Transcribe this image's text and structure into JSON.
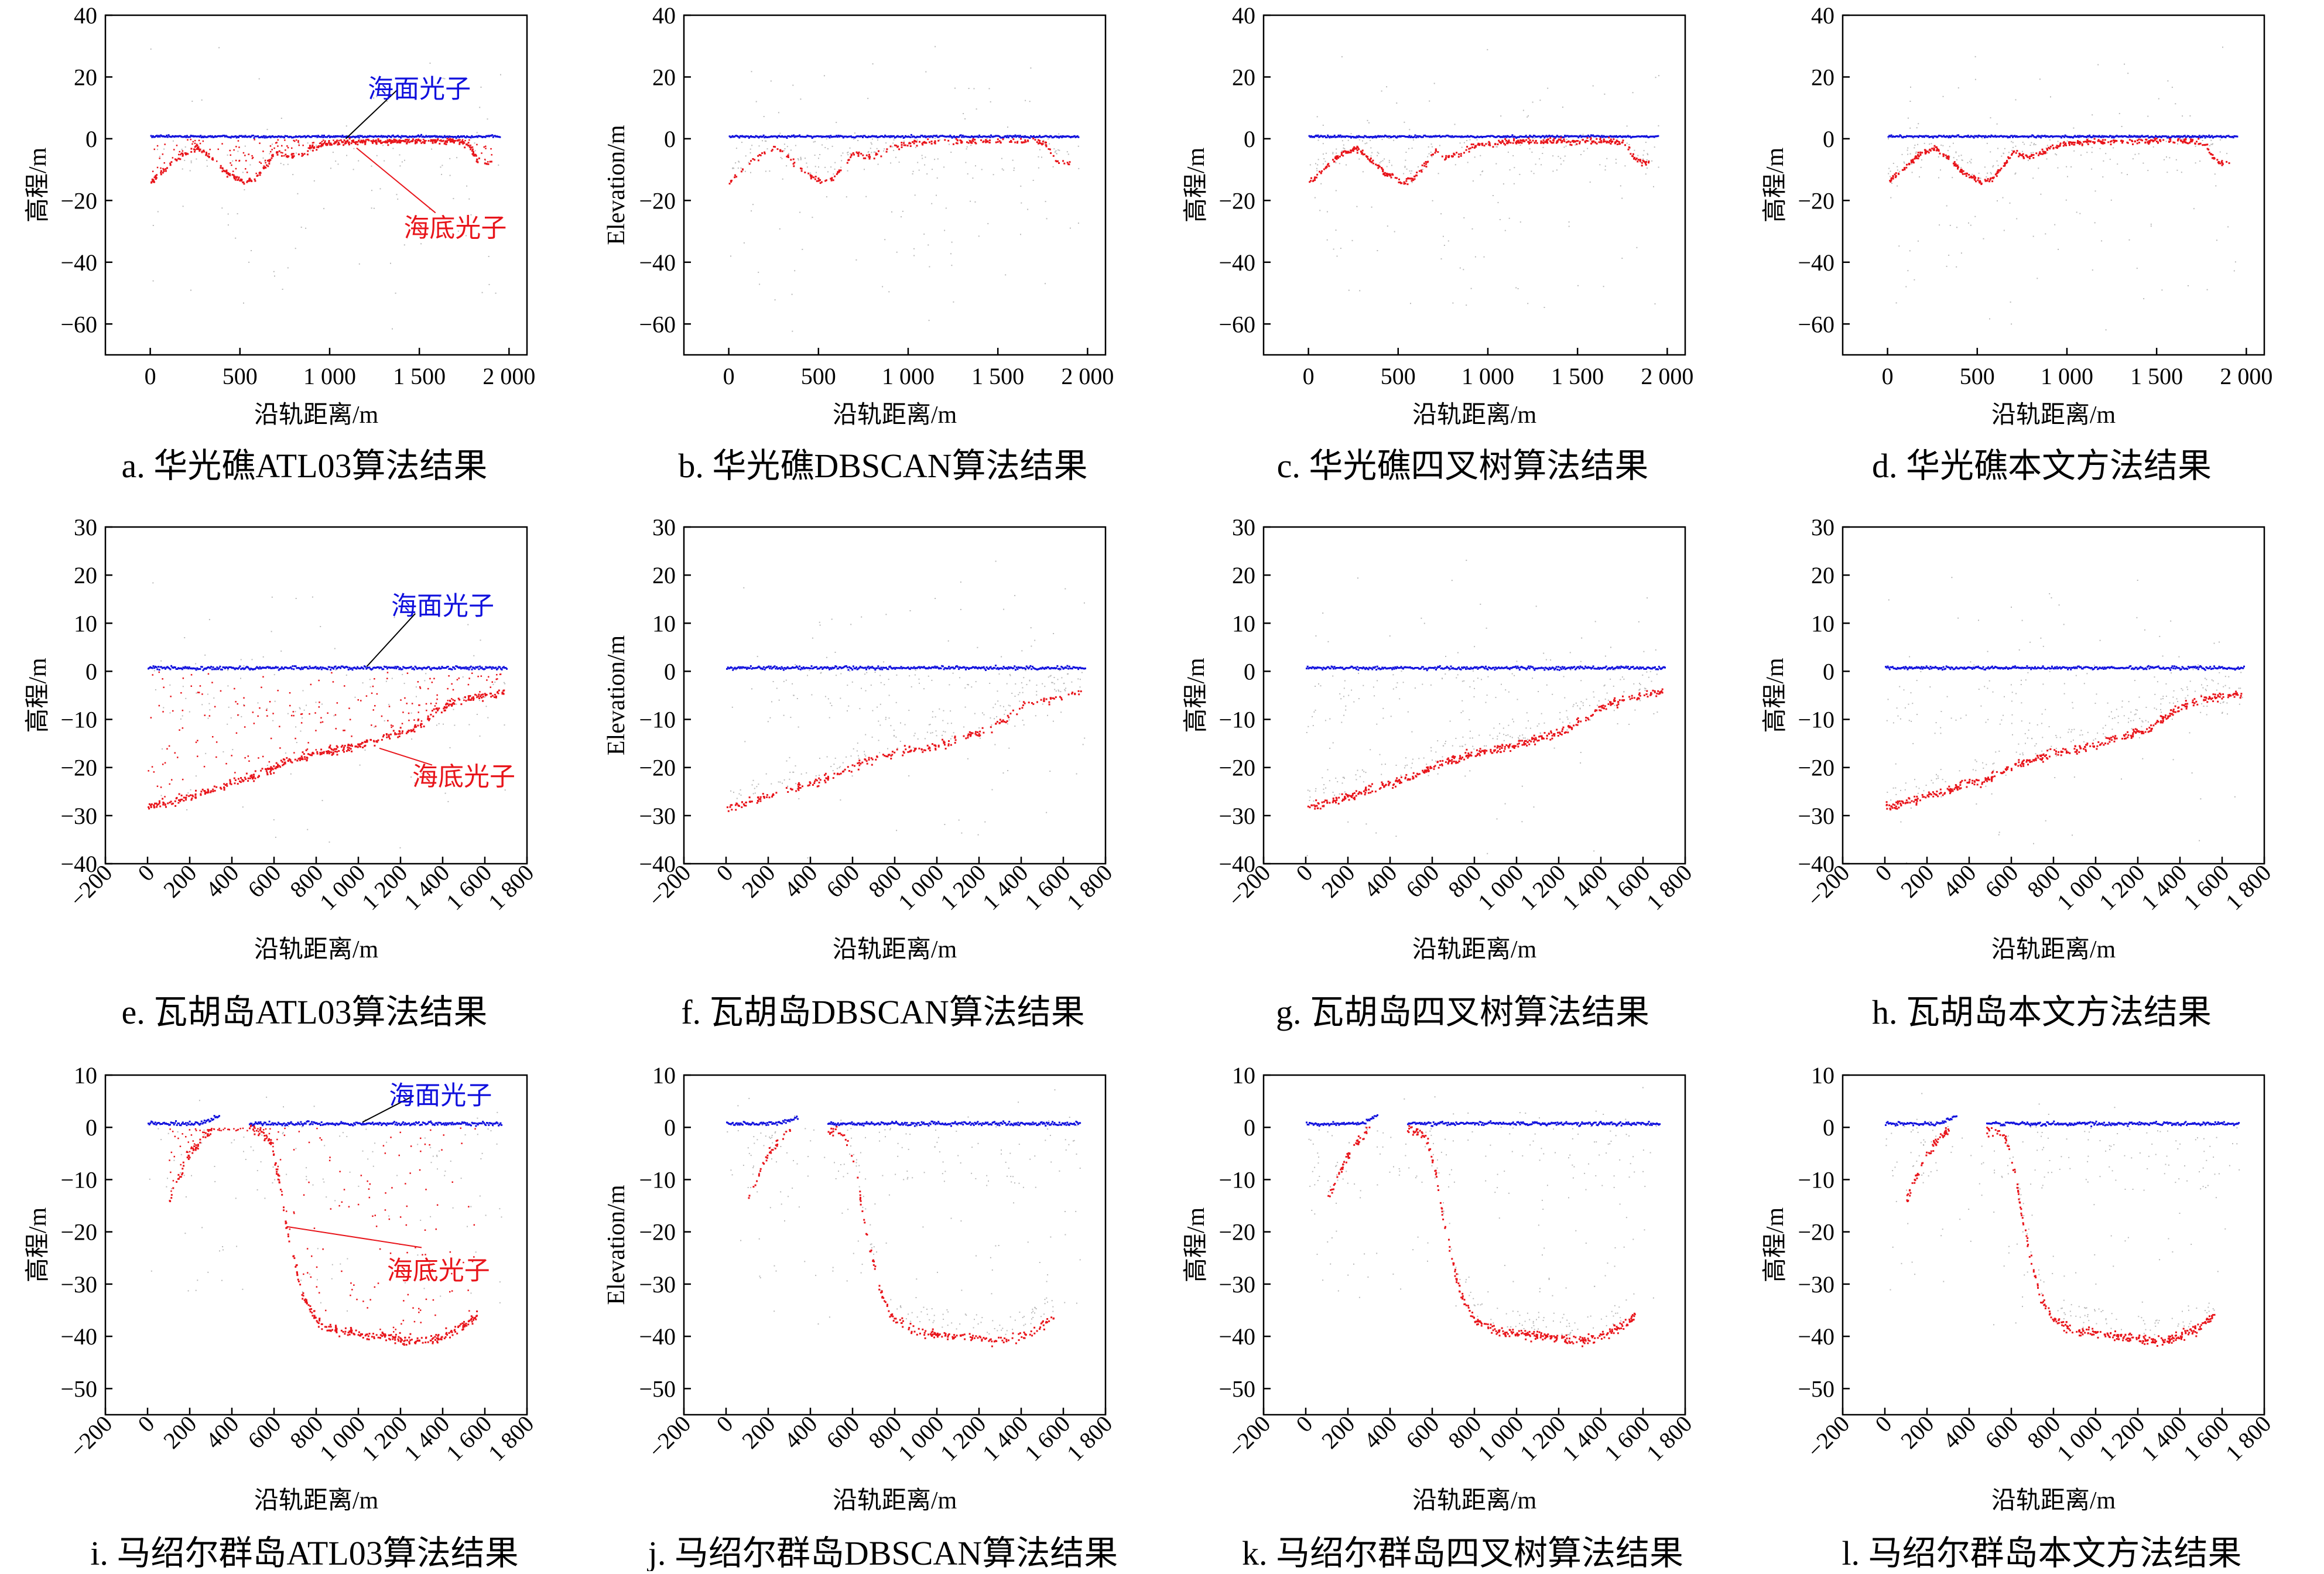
{
  "figure": {
    "annotations": {
      "sea_surface": "海面光子",
      "sea_floor": "海底光子"
    },
    "colors": {
      "surface": "#1010dd",
      "bottom": "#e8151b",
      "noise": "#b8b8b8",
      "annotation_line": "#000000"
    }
  },
  "chart_data": [
    {
      "id": "a",
      "type": "scatter",
      "caption": "a. 华光礁ATL03算法结果",
      "xlabel": "沿轨距离/m",
      "ylabel": "高程/m",
      "xlim": [
        -250,
        2100
      ],
      "ylim": [
        -70,
        40
      ],
      "xticks": [
        0,
        500,
        1000,
        1500,
        2000
      ],
      "xtick_labels": [
        "0",
        "500",
        "1 000",
        "1 500",
        "2 000"
      ],
      "yticks": [
        40,
        20,
        0,
        -20,
        -40,
        -60
      ],
      "xtick_rotate": false,
      "site": "huaguang",
      "method": "atl03",
      "annotated": true,
      "series": [
        {
          "name": "海面光子",
          "role": "surface",
          "values": "sea surface returns near 0 m"
        },
        {
          "name": "海底光子",
          "role": "bottom",
          "values": "bottom returns"
        }
      ]
    },
    {
      "id": "b",
      "type": "scatter",
      "caption": "b. 华光礁DBSCAN算法结果",
      "xlabel": "沿轨距离/m",
      "ylabel": "Elevation/m",
      "xlim": [
        -250,
        2100
      ],
      "ylim": [
        -70,
        40
      ],
      "xticks": [
        0,
        500,
        1000,
        1500,
        2000
      ],
      "xtick_labels": [
        "0",
        "500",
        "1 000",
        "1 500",
        "2 000"
      ],
      "yticks": [
        40,
        20,
        0,
        -20,
        -40,
        -60
      ],
      "xtick_rotate": false,
      "site": "huaguang",
      "method": "dbscan",
      "annotated": false
    },
    {
      "id": "c",
      "type": "scatter",
      "caption": "c. 华光礁四叉树算法结果",
      "xlabel": "沿轨距离/m",
      "ylabel": "高程/m",
      "xlim": [
        -250,
        2100
      ],
      "ylim": [
        -70,
        40
      ],
      "xticks": [
        0,
        500,
        1000,
        1500,
        2000
      ],
      "xtick_labels": [
        "0",
        "500",
        "1 000",
        "1 500",
        "2 000"
      ],
      "yticks": [
        40,
        20,
        0,
        -20,
        -40,
        -60
      ],
      "xtick_rotate": false,
      "site": "huaguang",
      "method": "quadtree",
      "annotated": false
    },
    {
      "id": "d",
      "type": "scatter",
      "caption": "d. 华光礁本文方法结果",
      "xlabel": "沿轨距离/m",
      "ylabel": "高程/m",
      "xlim": [
        -250,
        2100
      ],
      "ylim": [
        -70,
        40
      ],
      "xticks": [
        0,
        500,
        1000,
        1500,
        2000
      ],
      "xtick_labels": [
        "0",
        "500",
        "1 000",
        "1 500",
        "2 000"
      ],
      "yticks": [
        40,
        20,
        0,
        -20,
        -40,
        -60
      ],
      "xtick_rotate": false,
      "site": "huaguang",
      "method": "ours",
      "annotated": false
    },
    {
      "id": "e",
      "type": "scatter",
      "caption": "e. 瓦胡岛ATL03算法结果",
      "xlabel": "沿轨距离/m",
      "ylabel": "高程/m",
      "xlim": [
        -200,
        1800
      ],
      "ylim": [
        -40,
        30
      ],
      "xticks": [
        -200,
        0,
        200,
        400,
        600,
        800,
        1000,
        1200,
        1400,
        1600,
        1800
      ],
      "xtick_labels": [
        "−200",
        "0",
        "200",
        "400",
        "600",
        "800",
        "1 000",
        "1 200",
        "1 400",
        "1 600",
        "1 800"
      ],
      "yticks": [
        30,
        20,
        10,
        0,
        -10,
        -20,
        -30,
        -40
      ],
      "xtick_rotate": true,
      "site": "oahu",
      "method": "atl03",
      "annotated": true
    },
    {
      "id": "f",
      "type": "scatter",
      "caption": "f. 瓦胡岛DBSCAN算法结果",
      "xlabel": "沿轨距离/m",
      "ylabel": "Elevation/m",
      "xlim": [
        -200,
        1800
      ],
      "ylim": [
        -40,
        30
      ],
      "xticks": [
        -200,
        0,
        200,
        400,
        600,
        800,
        1000,
        1200,
        1400,
        1600,
        1800
      ],
      "xtick_labels": [
        "−200",
        "0",
        "200",
        "400",
        "600",
        "800",
        "1 000",
        "1 200",
        "1 400",
        "1 600",
        "1 800"
      ],
      "yticks": [
        30,
        20,
        10,
        0,
        -10,
        -20,
        -30,
        -40
      ],
      "xtick_rotate": true,
      "site": "oahu",
      "method": "dbscan",
      "annotated": false
    },
    {
      "id": "g",
      "type": "scatter",
      "caption": "g. 瓦胡岛四叉树算法结果",
      "xlabel": "沿轨距离/m",
      "ylabel": "高程/m",
      "xlim": [
        -200,
        1800
      ],
      "ylim": [
        -40,
        30
      ],
      "xticks": [
        -200,
        0,
        200,
        400,
        600,
        800,
        1000,
        1200,
        1400,
        1600,
        1800
      ],
      "xtick_labels": [
        "−200",
        "0",
        "200",
        "400",
        "600",
        "800",
        "1 000",
        "1 200",
        "1 400",
        "1 600",
        "1 800"
      ],
      "yticks": [
        30,
        20,
        10,
        0,
        -10,
        -20,
        -30,
        -40
      ],
      "xtick_rotate": true,
      "site": "oahu",
      "method": "quadtree",
      "annotated": false
    },
    {
      "id": "h",
      "type": "scatter",
      "caption": "h. 瓦胡岛本文方法结果",
      "xlabel": "沿轨距离/m",
      "ylabel": "高程/m",
      "xlim": [
        -200,
        1800
      ],
      "ylim": [
        -40,
        30
      ],
      "xticks": [
        -200,
        0,
        200,
        400,
        600,
        800,
        1000,
        1200,
        1400,
        1600,
        1800
      ],
      "xtick_labels": [
        "−200",
        "0",
        "200",
        "400",
        "600",
        "800",
        "1 000",
        "1 200",
        "1 400",
        "1 600",
        "1 800"
      ],
      "yticks": [
        30,
        20,
        10,
        0,
        -10,
        -20,
        -30,
        -40
      ],
      "xtick_rotate": true,
      "site": "oahu",
      "method": "ours",
      "annotated": false
    },
    {
      "id": "i",
      "type": "scatter",
      "caption": "i. 马绍尔群岛ATL03算法结果",
      "xlabel": "沿轨距离/m",
      "ylabel": "高程/m",
      "xlim": [
        -200,
        1800
      ],
      "ylim": [
        -55,
        10
      ],
      "xticks": [
        -200,
        0,
        200,
        400,
        600,
        800,
        1000,
        1200,
        1400,
        1600,
        1800
      ],
      "xtick_labels": [
        "−200",
        "0",
        "200",
        "400",
        "600",
        "800",
        "1 000",
        "1 200",
        "1 400",
        "1 600",
        "1 800"
      ],
      "yticks": [
        10,
        0,
        -10,
        -20,
        -30,
        -40,
        -50
      ],
      "xtick_rotate": true,
      "site": "marshall",
      "method": "atl03",
      "annotated": true
    },
    {
      "id": "j",
      "type": "scatter",
      "caption": "j. 马绍尔群岛DBSCAN算法结果",
      "xlabel": "沿轨距离/m",
      "ylabel": "Elevation/m",
      "xlim": [
        -200,
        1800
      ],
      "ylim": [
        -55,
        10
      ],
      "xticks": [
        -200,
        0,
        200,
        400,
        600,
        800,
        1000,
        1200,
        1400,
        1600,
        1800
      ],
      "xtick_labels": [
        "−200",
        "0",
        "200",
        "400",
        "600",
        "800",
        "1 000",
        "1 200",
        "1 400",
        "1 600",
        "1 800"
      ],
      "yticks": [
        10,
        0,
        -10,
        -20,
        -30,
        -40,
        -50
      ],
      "xtick_rotate": true,
      "site": "marshall",
      "method": "dbscan",
      "annotated": false
    },
    {
      "id": "k",
      "type": "scatter",
      "caption": "k. 马绍尔群岛四叉树算法结果",
      "xlabel": "沿轨距离/m",
      "ylabel": "高程/m",
      "xlim": [
        -200,
        1800
      ],
      "ylim": [
        -55,
        10
      ],
      "xticks": [
        -200,
        0,
        200,
        400,
        600,
        800,
        1000,
        1200,
        1400,
        1600,
        1800
      ],
      "xtick_labels": [
        "−200",
        "0",
        "200",
        "400",
        "600",
        "800",
        "1 000",
        "1 200",
        "1 400",
        "1 600",
        "1 800"
      ],
      "yticks": [
        10,
        0,
        -10,
        -20,
        -30,
        -40,
        -50
      ],
      "xtick_rotate": true,
      "site": "marshall",
      "method": "quadtree",
      "annotated": false
    },
    {
      "id": "l",
      "type": "scatter",
      "caption": "l. 马绍尔群岛本文方法结果",
      "xlabel": "沿轨距离/m",
      "ylabel": "高程/m",
      "xlim": [
        -200,
        1800
      ],
      "ylim": [
        -55,
        10
      ],
      "xticks": [
        -200,
        0,
        200,
        400,
        600,
        800,
        1000,
        1200,
        1400,
        1600,
        1800
      ],
      "xtick_labels": [
        "−200",
        "0",
        "200",
        "400",
        "600",
        "800",
        "1 000",
        "1 200",
        "1 400",
        "1 600",
        "1 800"
      ],
      "yticks": [
        10,
        0,
        -10,
        -20,
        -30,
        -40,
        -50
      ],
      "xtick_rotate": true,
      "site": "marshall",
      "method": "ours",
      "annotated": false
    }
  ]
}
